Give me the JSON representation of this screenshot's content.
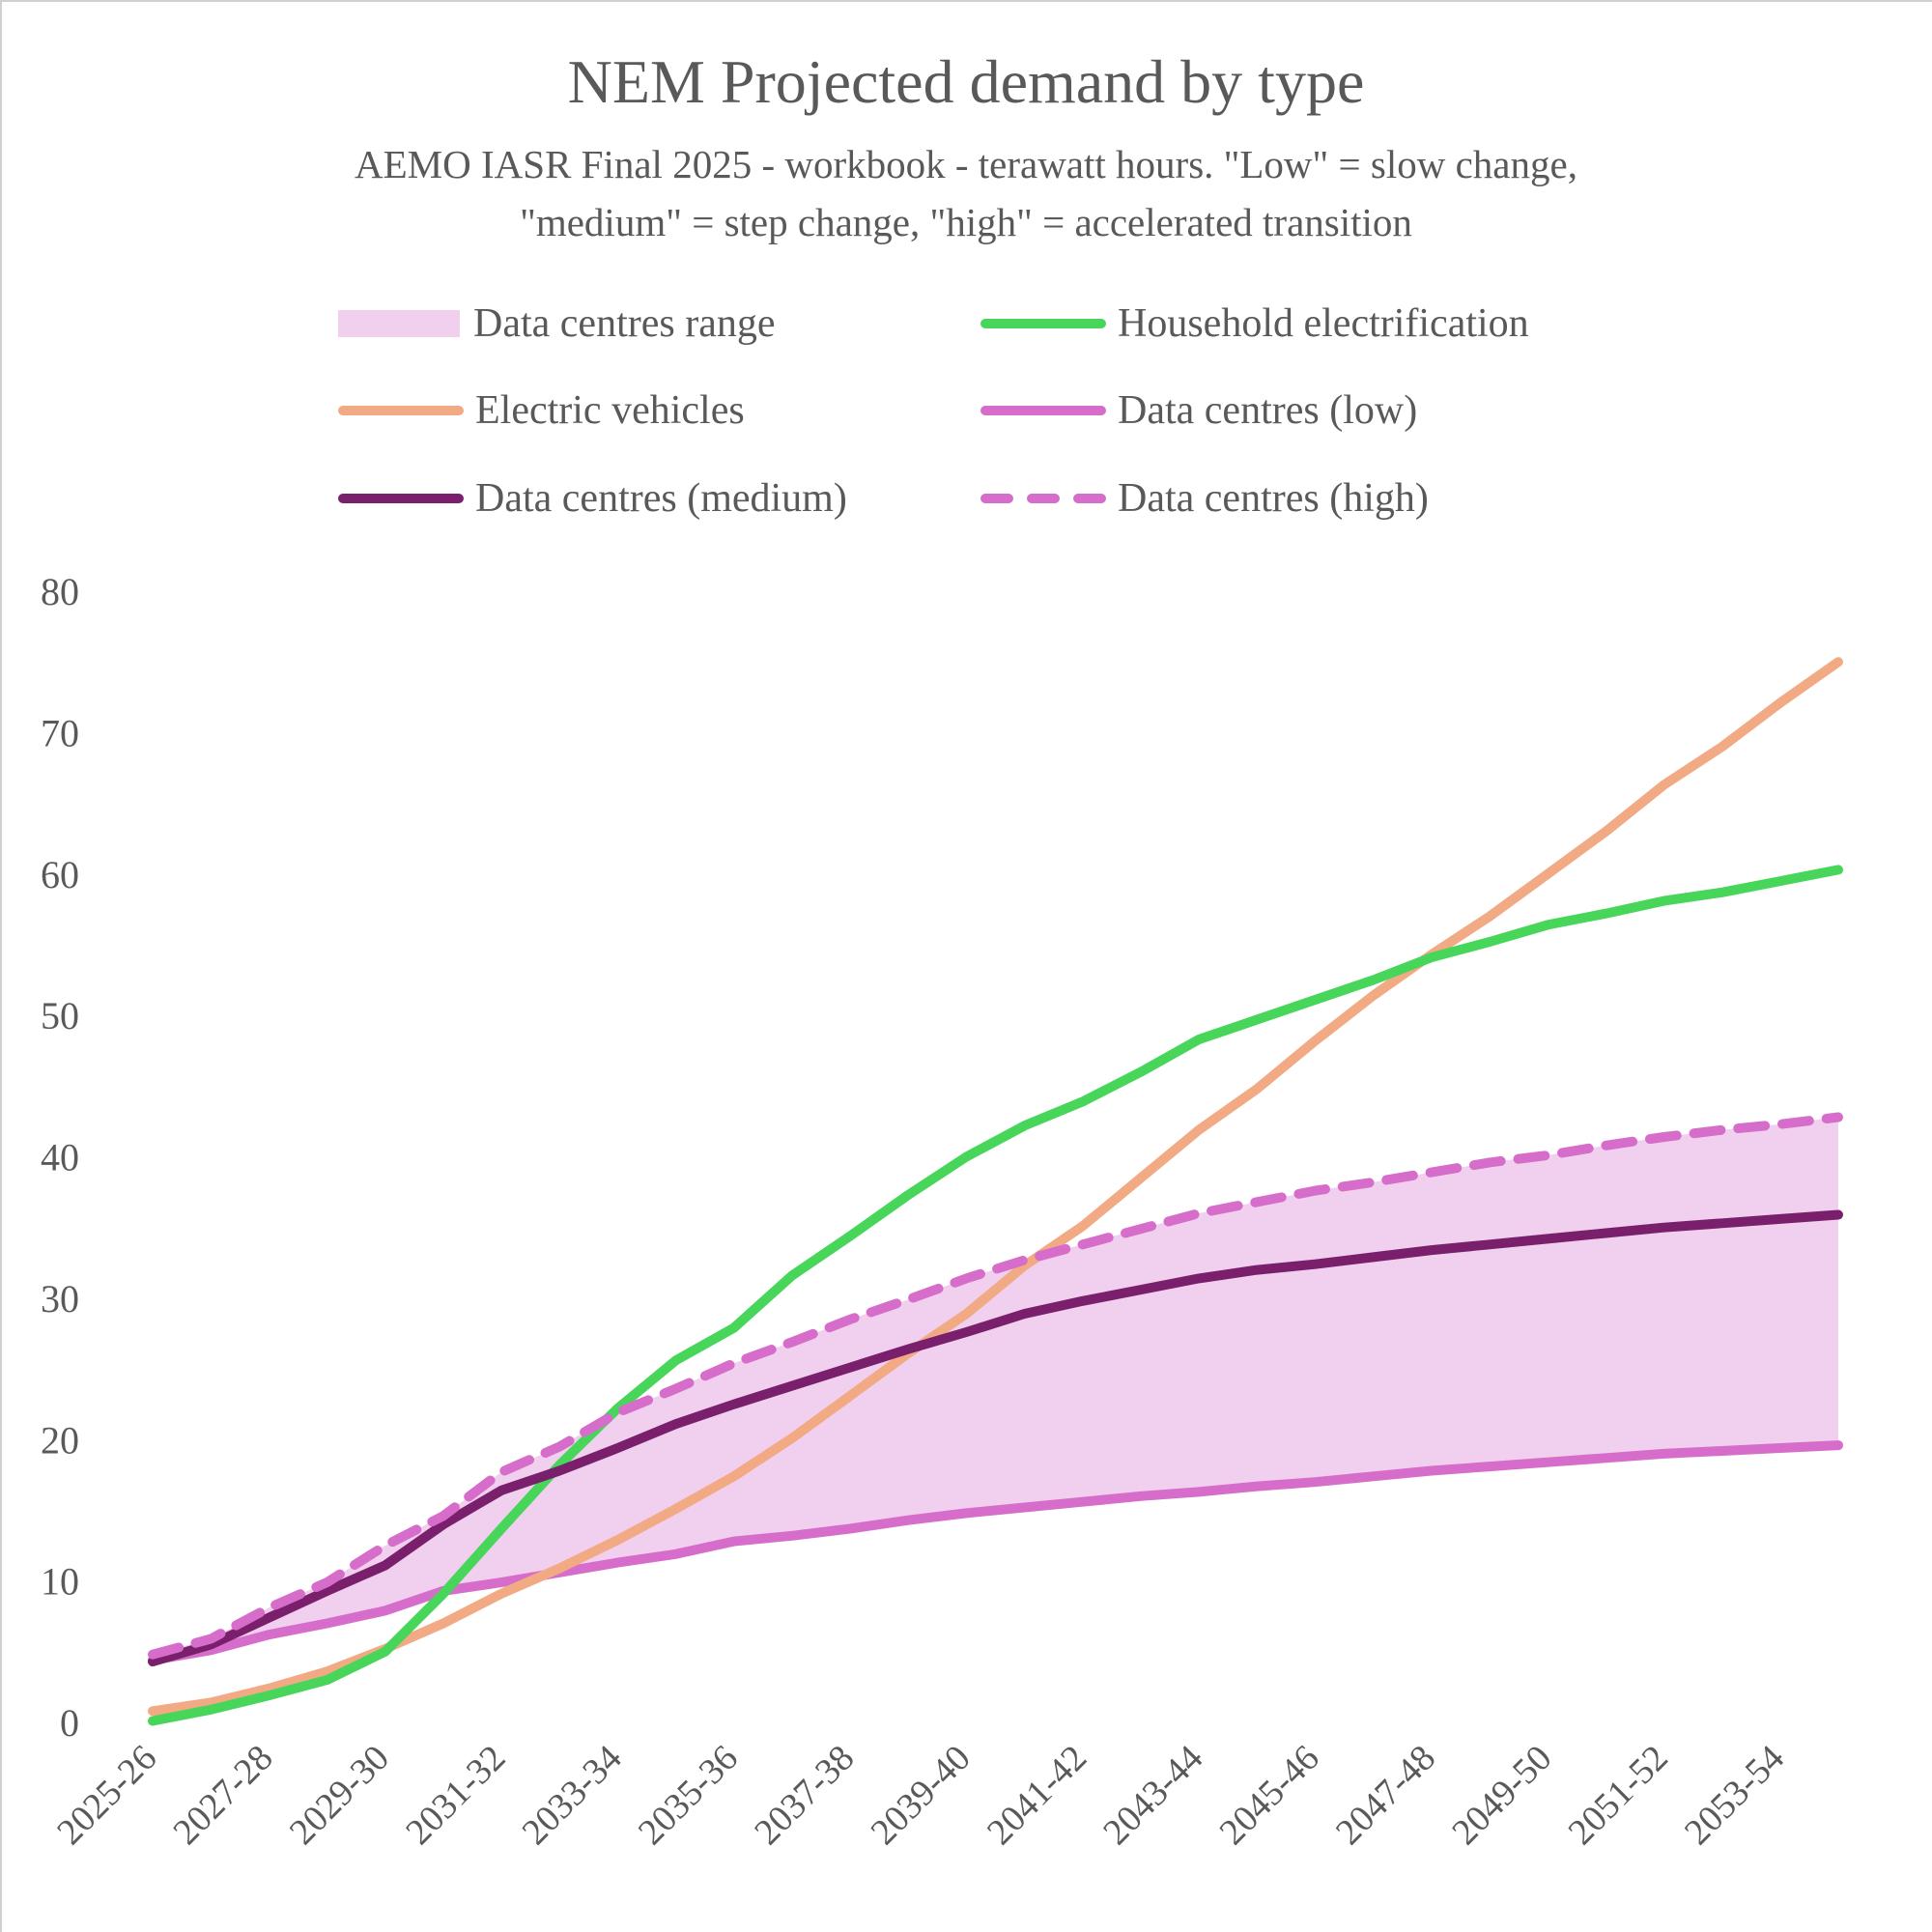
{
  "chart_data": {
    "type": "line",
    "title": "NEM Projected demand by type",
    "subtitle_lines": [
      "AEMO IASR Final 2025 - workbook - terawatt hours. \"Low\" = slow change,",
      "\"medium\" = step change, \"high\" = accelerated transition"
    ],
    "xlabel": "",
    "ylabel": "",
    "ylim": [
      0,
      80
    ],
    "yticks": [
      0,
      10,
      20,
      30,
      40,
      50,
      60,
      70,
      80
    ],
    "grid": false,
    "legend_position": "top",
    "x": [
      "2025-26",
      "2026-27",
      "2027-28",
      "2028-29",
      "2029-30",
      "2030-31",
      "2031-32",
      "2032-33",
      "2033-34",
      "2034-35",
      "2035-36",
      "2036-37",
      "2037-38",
      "2038-39",
      "2039-40",
      "2040-41",
      "2041-42",
      "2042-43",
      "2043-44",
      "2044-45",
      "2045-46",
      "2046-47",
      "2047-48",
      "2048-49",
      "2049-50",
      "2050-51",
      "2051-52",
      "2052-53",
      "2053-54",
      "2054-55"
    ],
    "x_tick_labels": [
      "2025-26",
      "2027-28",
      "2029-30",
      "2031-32",
      "2033-34",
      "2035-36",
      "2037-38",
      "2039-40",
      "2041-42",
      "2043-44",
      "2045-46",
      "2047-48",
      "2049-50",
      "2051-52",
      "2053-54"
    ],
    "series": [
      {
        "name": "Household electrification",
        "color": "#47D65A",
        "style": "solid",
        "values": [
          0.1,
          0.9,
          1.9,
          3.0,
          5.0,
          9.1,
          13.7,
          18.2,
          22.2,
          25.6,
          27.9,
          31.6,
          34.4,
          37.3,
          40.0,
          42.2,
          43.9,
          46.0,
          48.3,
          49.7,
          51.1,
          52.5,
          54.1,
          55.2,
          56.4,
          57.2,
          58.1,
          58.7,
          59.5,
          60.3
        ]
      },
      {
        "name": "Electric vehicles",
        "color": "#F1AA84",
        "style": "solid",
        "values": [
          0.8,
          1.4,
          2.4,
          3.6,
          5.2,
          7.0,
          9.1,
          10.9,
          12.9,
          15.1,
          17.4,
          20.1,
          23.1,
          26.1,
          28.9,
          32.3,
          35.1,
          38.5,
          41.9,
          44.8,
          48.2,
          51.4,
          54.3,
          57.0,
          60.0,
          63.0,
          66.3,
          69.0,
          72.1,
          75.0
        ]
      },
      {
        "name": "Data centres (low)",
        "color": "#D66DCA",
        "style": "solid",
        "values": [
          4.4,
          5.1,
          6.2,
          7.0,
          7.9,
          9.3,
          9.9,
          10.6,
          11.3,
          11.9,
          12.8,
          13.2,
          13.7,
          14.3,
          14.8,
          15.2,
          15.6,
          16.0,
          16.3,
          16.7,
          17.0,
          17.4,
          17.8,
          18.1,
          18.4,
          18.7,
          19.0,
          19.2,
          19.4,
          19.6
        ]
      },
      {
        "name": "Data centres (medium)",
        "color": "#7A1F6C",
        "style": "solid",
        "values": [
          4.3,
          5.5,
          7.4,
          9.3,
          11.1,
          14.0,
          16.4,
          17.8,
          19.4,
          21.1,
          22.5,
          23.8,
          25.1,
          26.4,
          27.6,
          28.9,
          29.8,
          30.6,
          31.4,
          32.0,
          32.4,
          32.9,
          33.4,
          33.8,
          34.2,
          34.6,
          35.0,
          35.3,
          35.6,
          35.9
        ]
      },
      {
        "name": "Data centres (high)",
        "color": "#D66DCA",
        "style": "dashed",
        "values": [
          4.8,
          5.9,
          8.1,
          9.9,
          12.5,
          14.6,
          17.7,
          19.5,
          21.9,
          23.6,
          25.4,
          26.9,
          28.5,
          29.9,
          31.4,
          32.7,
          33.8,
          34.9,
          36.0,
          36.8,
          37.6,
          38.2,
          38.9,
          39.6,
          40.1,
          40.8,
          41.4,
          41.9,
          42.3,
          42.8
        ]
      }
    ],
    "range": {
      "name": "Data centres range",
      "color": "#F1CFEE",
      "lower": "Data centres (low)",
      "upper": "Data centres (high)"
    },
    "legend": [
      {
        "label": "Data centres range",
        "kind": "box",
        "color": "#F1CFEE"
      },
      {
        "label": "Household electrification",
        "kind": "line",
        "color": "#47D65A"
      },
      {
        "label": "Electric vehicles",
        "kind": "line",
        "color": "#F1AA84"
      },
      {
        "label": "Data centres (low)",
        "kind": "line",
        "color": "#D66DCA"
      },
      {
        "label": "Data centres (medium)",
        "kind": "line",
        "color": "#7A1F6C"
      },
      {
        "label": "Data centres (high)",
        "kind": "dash",
        "color": "#D66DCA"
      }
    ]
  }
}
